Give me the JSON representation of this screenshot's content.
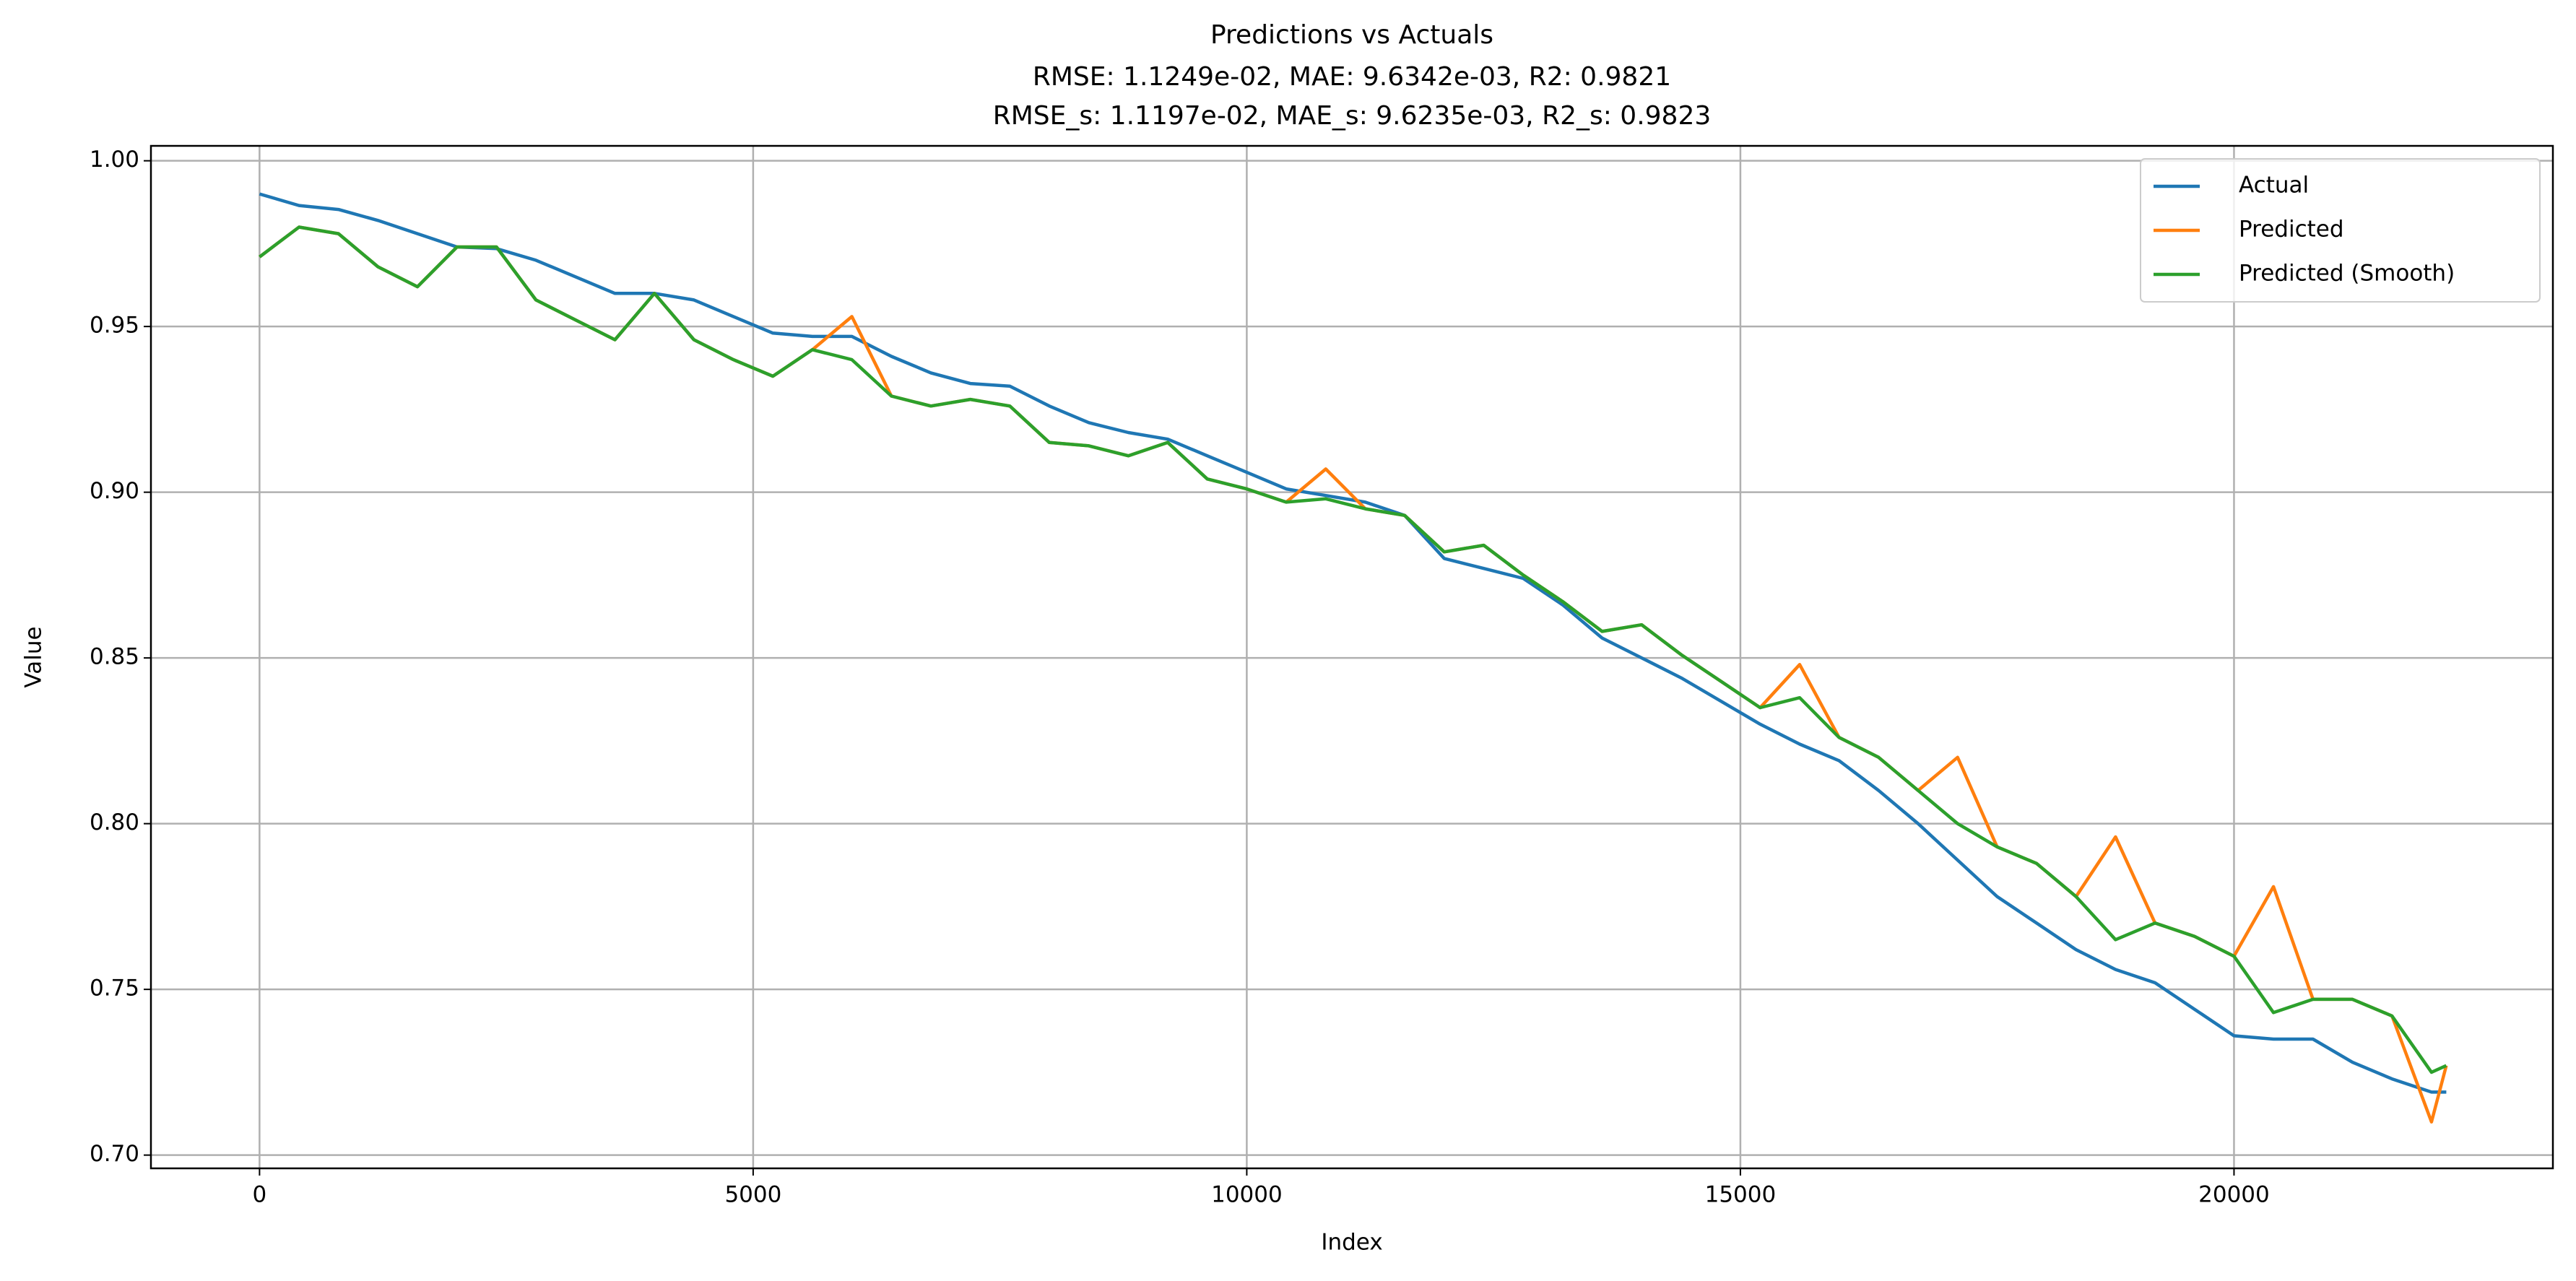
{
  "chart_data": {
    "type": "line",
    "title": "Predictions vs Actuals",
    "subtitle": [
      "RMSE: 1.1249e-02, MAE: 9.6342e-03, R2: 0.9821",
      "RMSE_s: 1.1197e-02, MAE_s: 9.6235e-03, R2_s: 0.9823"
    ],
    "x_label": "Index",
    "y_label": "Value",
    "x": [
      0,
      400,
      800,
      1200,
      1600,
      2000,
      2400,
      2800,
      3200,
      3600,
      4000,
      4400,
      4800,
      5200,
      5600,
      6000,
      6400,
      6800,
      7200,
      7600,
      8000,
      8400,
      8800,
      9200,
      9600,
      10000,
      10400,
      10800,
      11200,
      11600,
      12000,
      12400,
      12800,
      13200,
      13600,
      14000,
      14400,
      14800,
      15200,
      15600,
      16000,
      16400,
      16800,
      17200,
      17600,
      18000,
      18400,
      18800,
      19200,
      19600,
      20000,
      20400,
      20800,
      21200,
      21600,
      22000,
      22150
    ],
    "series": [
      {
        "name": "Actual",
        "color": "#1f77b4",
        "values": [
          0.99,
          0.9865,
          0.9853,
          0.982,
          0.978,
          0.974,
          0.9735,
          0.97,
          0.965,
          0.96,
          0.96,
          0.958,
          0.953,
          0.948,
          0.947,
          0.947,
          0.941,
          0.936,
          0.9328,
          0.932,
          0.926,
          0.921,
          0.918,
          0.916,
          0.911,
          0.906,
          0.901,
          0.899,
          0.897,
          0.893,
          0.88,
          0.877,
          0.874,
          0.866,
          0.856,
          0.85,
          0.844,
          0.837,
          0.83,
          0.824,
          0.819,
          0.81,
          0.8,
          0.789,
          0.778,
          0.77,
          0.762,
          0.756,
          0.752,
          0.744,
          0.736,
          0.735,
          0.735,
          0.728,
          0.723,
          0.719,
          0.719
        ]
      },
      {
        "name": "Predicted",
        "color": "#ff7f0e",
        "values": [
          0.971,
          0.98,
          0.978,
          0.968,
          0.962,
          0.974,
          0.974,
          0.958,
          0.952,
          0.946,
          0.96,
          0.946,
          0.94,
          0.935,
          0.943,
          0.953,
          0.929,
          0.926,
          0.928,
          0.926,
          0.915,
          0.914,
          0.911,
          0.915,
          0.904,
          0.901,
          0.897,
          0.907,
          0.895,
          0.893,
          0.882,
          0.884,
          0.875,
          0.867,
          0.858,
          0.86,
          0.851,
          0.843,
          0.835,
          0.848,
          0.826,
          0.82,
          0.81,
          0.82,
          0.793,
          0.788,
          0.778,
          0.796,
          0.77,
          0.766,
          0.76,
          0.781,
          0.747,
          0.747,
          0.742,
          0.71,
          0.727
        ]
      },
      {
        "name": "Predicted (Smooth)",
        "color": "#2ca02c",
        "values": [
          0.971,
          0.98,
          0.978,
          0.968,
          0.962,
          0.974,
          0.974,
          0.958,
          0.952,
          0.946,
          0.96,
          0.946,
          0.94,
          0.935,
          0.943,
          0.94,
          0.929,
          0.926,
          0.928,
          0.926,
          0.915,
          0.914,
          0.911,
          0.915,
          0.904,
          0.901,
          0.897,
          0.898,
          0.895,
          0.893,
          0.882,
          0.884,
          0.875,
          0.867,
          0.858,
          0.86,
          0.851,
          0.843,
          0.835,
          0.838,
          0.826,
          0.82,
          0.81,
          0.8,
          0.793,
          0.788,
          0.778,
          0.765,
          0.77,
          0.766,
          0.76,
          0.743,
          0.747,
          0.747,
          0.742,
          0.725,
          0.727
        ]
      }
    ],
    "xlim": [
      -1100,
      23230
    ],
    "ylim": [
      0.696,
      1.0045
    ],
    "xticks": [
      0,
      5000,
      10000,
      15000,
      20000
    ],
    "yticks": [
      {
        "value": 0.7,
        "label": "0.70"
      },
      0.75,
      {
        "value": 0.8,
        "label": "0.80"
      },
      0.85,
      {
        "value": 0.9,
        "label": "0.90"
      },
      0.95,
      {
        "value": 1.0,
        "label": "1.00"
      }
    ],
    "grid": true,
    "legend_loc": "upper right"
  }
}
